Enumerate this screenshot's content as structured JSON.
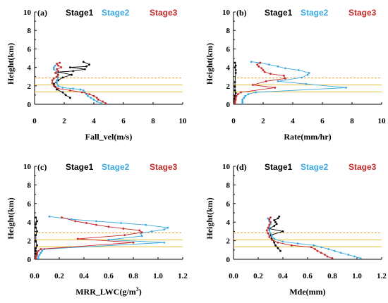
{
  "chart_data": [
    {
      "type": "line",
      "panel_label": "(a)",
      "xlabel": "Fall_vel(m/s)",
      "ylabel": "Height(km)",
      "xlim": [
        0,
        10
      ],
      "ylim": [
        0,
        10
      ],
      "xticks": [
        "0",
        "2",
        "4",
        "6",
        "8",
        "10"
      ],
      "yticks": [
        "0",
        "2",
        "4",
        "6",
        "8",
        "10"
      ],
      "legend": [
        "Stage1",
        "Stage2",
        "Stage3"
      ],
      "reference_lines": [
        1.35,
        2.1,
        2.85
      ],
      "series": [
        {
          "name": "Stage1",
          "color": "#000000",
          "x": [
            2.4,
            2.1,
            1.9,
            1.5,
            1.4,
            1.3,
            1.6,
            1.9,
            2.5,
            1.6,
            2.6,
            3.4,
            2.4,
            3.5,
            3.7,
            3.3
          ],
          "y": [
            0.7,
            1.0,
            1.3,
            1.6,
            1.9,
            2.2,
            2.6,
            2.9,
            3.2,
            3.5,
            3.6,
            3.8,
            4.0,
            4.1,
            4.3,
            4.6
          ]
        },
        {
          "name": "Stage2",
          "color": "#3aa9e0",
          "x": [
            4.5,
            4.2,
            4.0,
            3.8,
            3.6,
            3.5,
            3.4,
            3.3,
            3.1,
            2.6,
            1.9,
            1.6,
            1.5,
            1.5,
            1.6,
            1.6,
            1.5,
            1.3,
            1.3,
            1.4
          ],
          "y": [
            0.1,
            0.3,
            0.5,
            0.7,
            0.9,
            1.1,
            1.3,
            1.5,
            1.6,
            1.7,
            1.8,
            2.0,
            2.3,
            2.6,
            2.9,
            3.2,
            3.5,
            3.8,
            4.0,
            4.2
          ]
        },
        {
          "name": "Stage3",
          "color": "#c62828",
          "x": [
            4.8,
            4.6,
            4.3,
            4.2,
            4.0,
            3.7,
            3.2,
            2.4,
            1.6,
            1.3,
            1.2,
            1.2,
            1.3,
            1.5,
            1.6,
            1.4,
            1.6,
            1.5,
            1.8,
            1.6,
            1.5,
            1.7
          ],
          "y": [
            0.1,
            0.3,
            0.5,
            0.7,
            0.9,
            1.1,
            1.3,
            1.5,
            1.7,
            2.0,
            2.3,
            2.6,
            2.8,
            3.0,
            3.2,
            3.4,
            3.6,
            3.8,
            4.0,
            4.2,
            4.4,
            4.5
          ]
        }
      ]
    },
    {
      "type": "line",
      "panel_label": "(b)",
      "xlabel": "Rate(mm/hr)",
      "ylabel": "Height(km)",
      "xlim": [
        0,
        10
      ],
      "ylim": [
        0,
        10
      ],
      "xticks": [
        "0",
        "2",
        "4",
        "6",
        "8",
        "10"
      ],
      "yticks": [
        "0",
        "2",
        "4",
        "6",
        "8",
        "10"
      ],
      "legend": [
        "Stage1",
        "Stage2",
        "Stage3"
      ],
      "reference_lines": [
        1.35,
        2.1,
        2.85
      ],
      "series": [
        {
          "name": "Stage1",
          "color": "#000000",
          "x": [
            0.05,
            0.05,
            0.1,
            0.15,
            0.1,
            0.1,
            0.1,
            0.15,
            0.15,
            0.1,
            0.15,
            0.1
          ],
          "y": [
            0.3,
            0.6,
            0.9,
            1.2,
            1.5,
            1.9,
            2.4,
            3.4,
            3.7,
            4.0,
            4.2,
            4.5
          ]
        },
        {
          "name": "Stage2",
          "color": "#3aa9e0",
          "x": [
            0.6,
            0.6,
            0.6,
            0.7,
            0.8,
            1.0,
            1.5,
            7.6,
            4.9,
            3.0,
            4.6,
            5.0,
            5.1,
            4.4,
            3.5,
            3.0,
            2.4,
            1.8,
            1.2
          ],
          "y": [
            0.1,
            0.3,
            0.5,
            0.7,
            0.9,
            1.1,
            1.3,
            1.8,
            2.2,
            2.5,
            2.9,
            3.2,
            3.4,
            3.7,
            3.9,
            4.1,
            4.3,
            4.5,
            4.6
          ]
        },
        {
          "name": "Stage3",
          "color": "#c62828",
          "x": [
            0.1,
            0.1,
            0.15,
            0.15,
            0.2,
            0.3,
            0.5,
            2.8,
            1.3,
            2.2,
            3.5,
            3.4,
            2.5,
            2.1,
            2.0,
            1.9,
            1.7,
            1.6,
            1.8
          ],
          "y": [
            0.1,
            0.3,
            0.5,
            0.7,
            0.9,
            1.1,
            1.3,
            1.8,
            2.1,
            2.5,
            2.8,
            3.1,
            3.3,
            3.5,
            3.7,
            3.9,
            4.1,
            4.3,
            4.5
          ]
        }
      ]
    },
    {
      "type": "line",
      "panel_label": "(c)",
      "xlabel": "MRR_LWC(g/m",
      "xlabel_sup": "3",
      "xlabel_end": ")",
      "ylabel": "Height(km)",
      "xlim": [
        0,
        1.2
      ],
      "ylim": [
        0,
        10
      ],
      "xticks": [
        "0.0",
        "0.2",
        "0.4",
        "0.6",
        "0.8",
        "1.0",
        "1.2"
      ],
      "yticks": [
        "0",
        "2",
        "4",
        "6",
        "8",
        "10"
      ],
      "legend": [
        "Stage1",
        "Stage2",
        "Stage3"
      ],
      "reference_lines": [
        1.35,
        2.1,
        2.85
      ],
      "series": [
        {
          "name": "Stage1",
          "color": "#000000",
          "x": [
            0.01,
            0.01,
            0.01,
            0.01,
            0.02,
            0.01,
            0.01,
            0.02,
            0.01,
            0.01,
            0.02,
            0.01
          ],
          "y": [
            0.3,
            0.6,
            0.9,
            1.2,
            1.5,
            1.9,
            2.6,
            3.0,
            3.4,
            3.8,
            4.1,
            4.5
          ]
        },
        {
          "name": "Stage2",
          "color": "#3aa9e0",
          "x": [
            0.03,
            0.03,
            0.04,
            0.05,
            0.06,
            0.08,
            1.05,
            0.6,
            0.87,
            0.86,
            0.95,
            1.05,
            1.08,
            0.9,
            0.7,
            0.5,
            0.3,
            0.12
          ],
          "y": [
            0.1,
            0.3,
            0.5,
            0.7,
            0.9,
            1.1,
            1.8,
            2.1,
            2.5,
            2.8,
            3.0,
            3.2,
            3.4,
            3.7,
            3.9,
            4.1,
            4.3,
            4.6
          ]
        },
        {
          "name": "Stage3",
          "color": "#c62828",
          "x": [
            0.01,
            0.01,
            0.02,
            0.02,
            0.03,
            0.05,
            0.8,
            0.35,
            0.73,
            0.87,
            0.85,
            0.72,
            0.6,
            0.5,
            0.42,
            0.33,
            0.22
          ],
          "y": [
            0.1,
            0.3,
            0.5,
            0.7,
            0.9,
            1.1,
            1.8,
            2.2,
            2.6,
            2.9,
            3.1,
            3.3,
            3.5,
            3.7,
            3.9,
            4.1,
            4.5
          ]
        }
      ]
    },
    {
      "type": "line",
      "panel_label": "(d)",
      "xlabel": "Mde(mm)",
      "ylabel": "Height(km)",
      "xlim": [
        0,
        1.2
      ],
      "ylim": [
        0,
        10
      ],
      "xticks": [
        "0.0",
        "0.2",
        "0.4",
        "0.6",
        "0.8",
        "1.0",
        "1.2"
      ],
      "yticks": [
        "0",
        "2",
        "4",
        "6",
        "8",
        "10"
      ],
      "legend": [
        "Stage1",
        "Stage2",
        "Stage3"
      ],
      "reference_lines": [
        1.35,
        2.1,
        2.85
      ],
      "series": [
        {
          "name": "Stage1",
          "color": "#000000",
          "x": [
            0.38,
            0.36,
            0.34,
            0.33,
            0.31,
            0.3,
            0.4,
            0.29,
            0.33,
            0.35,
            0.34,
            0.33,
            0.36,
            0.37
          ],
          "y": [
            0.9,
            1.2,
            1.5,
            1.8,
            2.2,
            2.6,
            3.0,
            3.3,
            3.6,
            3.8,
            4.0,
            4.2,
            4.4,
            4.6
          ]
        },
        {
          "name": "Stage2",
          "color": "#3aa9e0",
          "x": [
            1.03,
            0.98,
            0.93,
            0.87,
            0.82,
            0.77,
            0.71,
            0.65,
            0.52,
            0.4,
            0.33,
            0.31,
            0.3,
            0.29,
            0.29,
            0.3,
            0.29,
            0.28
          ],
          "y": [
            0.1,
            0.3,
            0.5,
            0.7,
            0.9,
            1.1,
            1.3,
            1.5,
            1.7,
            1.9,
            2.2,
            2.5,
            2.8,
            3.1,
            3.4,
            3.8,
            4.1,
            4.4
          ]
        },
        {
          "name": "Stage3",
          "color": "#c62828",
          "x": [
            0.8,
            0.76,
            0.74,
            0.71,
            0.68,
            0.66,
            0.63,
            0.47,
            0.36,
            0.31,
            0.29,
            0.28,
            0.27,
            0.28,
            0.29,
            0.3,
            0.29,
            0.3
          ],
          "y": [
            0.1,
            0.3,
            0.5,
            0.7,
            0.9,
            1.1,
            1.3,
            1.5,
            1.8,
            2.1,
            2.4,
            2.8,
            3.1,
            3.4,
            3.7,
            4.0,
            4.3,
            4.5
          ]
        }
      ]
    }
  ]
}
